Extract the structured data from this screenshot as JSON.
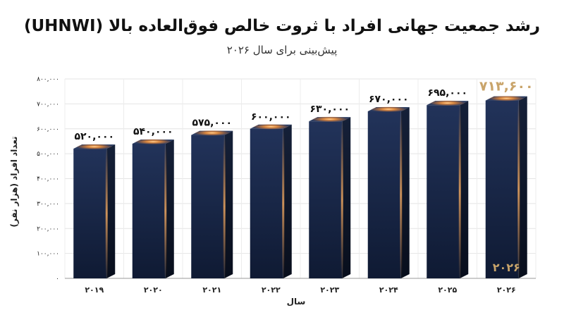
{
  "chart_data": {
    "type": "bar",
    "title": "رشد جمعیت جهانی افراد با ثروت خالص فوق‌العاده بالا (UHNWI)",
    "subtitle": "پیش‌بینی برای سال ۲۰۲۶",
    "xlabel": "سال",
    "ylabel": "تعداد افراد (هزار نفر)",
    "categories": [
      "۲۰۱۹",
      "۲۰۲۰",
      "۲۰۲۱",
      "۲۰۲۲",
      "۲۰۲۳",
      "۲۰۲۴",
      "۲۰۲۵",
      "۲۰۲۶"
    ],
    "values": [
      520000,
      540000,
      575000,
      600000,
      630000,
      670000,
      695000,
      713600
    ],
    "value_labels": [
      "۵۲۰,۰۰۰",
      "۵۴۰,۰۰۰",
      "۵۷۵,۰۰۰",
      "۶۰۰,۰۰۰",
      "۶۳۰,۰۰۰",
      "۶۷۰,۰۰۰",
      "۶۹۵,۰۰۰",
      "۷۱۳,۶۰۰"
    ],
    "highlight_index": 7,
    "highlight_inner_label": "۲۰۲۶",
    "ylim": [
      0,
      800000
    ],
    "yticks": [
      0,
      100000,
      200000,
      300000,
      400000,
      500000,
      600000,
      700000,
      800000
    ],
    "ytick_labels": [
      "۰",
      "۱۰۰,۰۰۰",
      "۲۰۰,۰۰۰",
      "۳۰۰,۰۰۰",
      "۴۰۰,۰۰۰",
      "۵۰۰,۰۰۰",
      "۶۰۰,۰۰۰",
      "۷۰۰,۰۰۰",
      "۸۰۰,۰۰۰"
    ],
    "grid": true,
    "colors": {
      "bar_front": "#1c2a4a",
      "bar_side": "#0e1628",
      "bar_top": "#2a3a5c",
      "glow": "#ff9a3c",
      "highlight_text": "#c9a46a"
    }
  }
}
